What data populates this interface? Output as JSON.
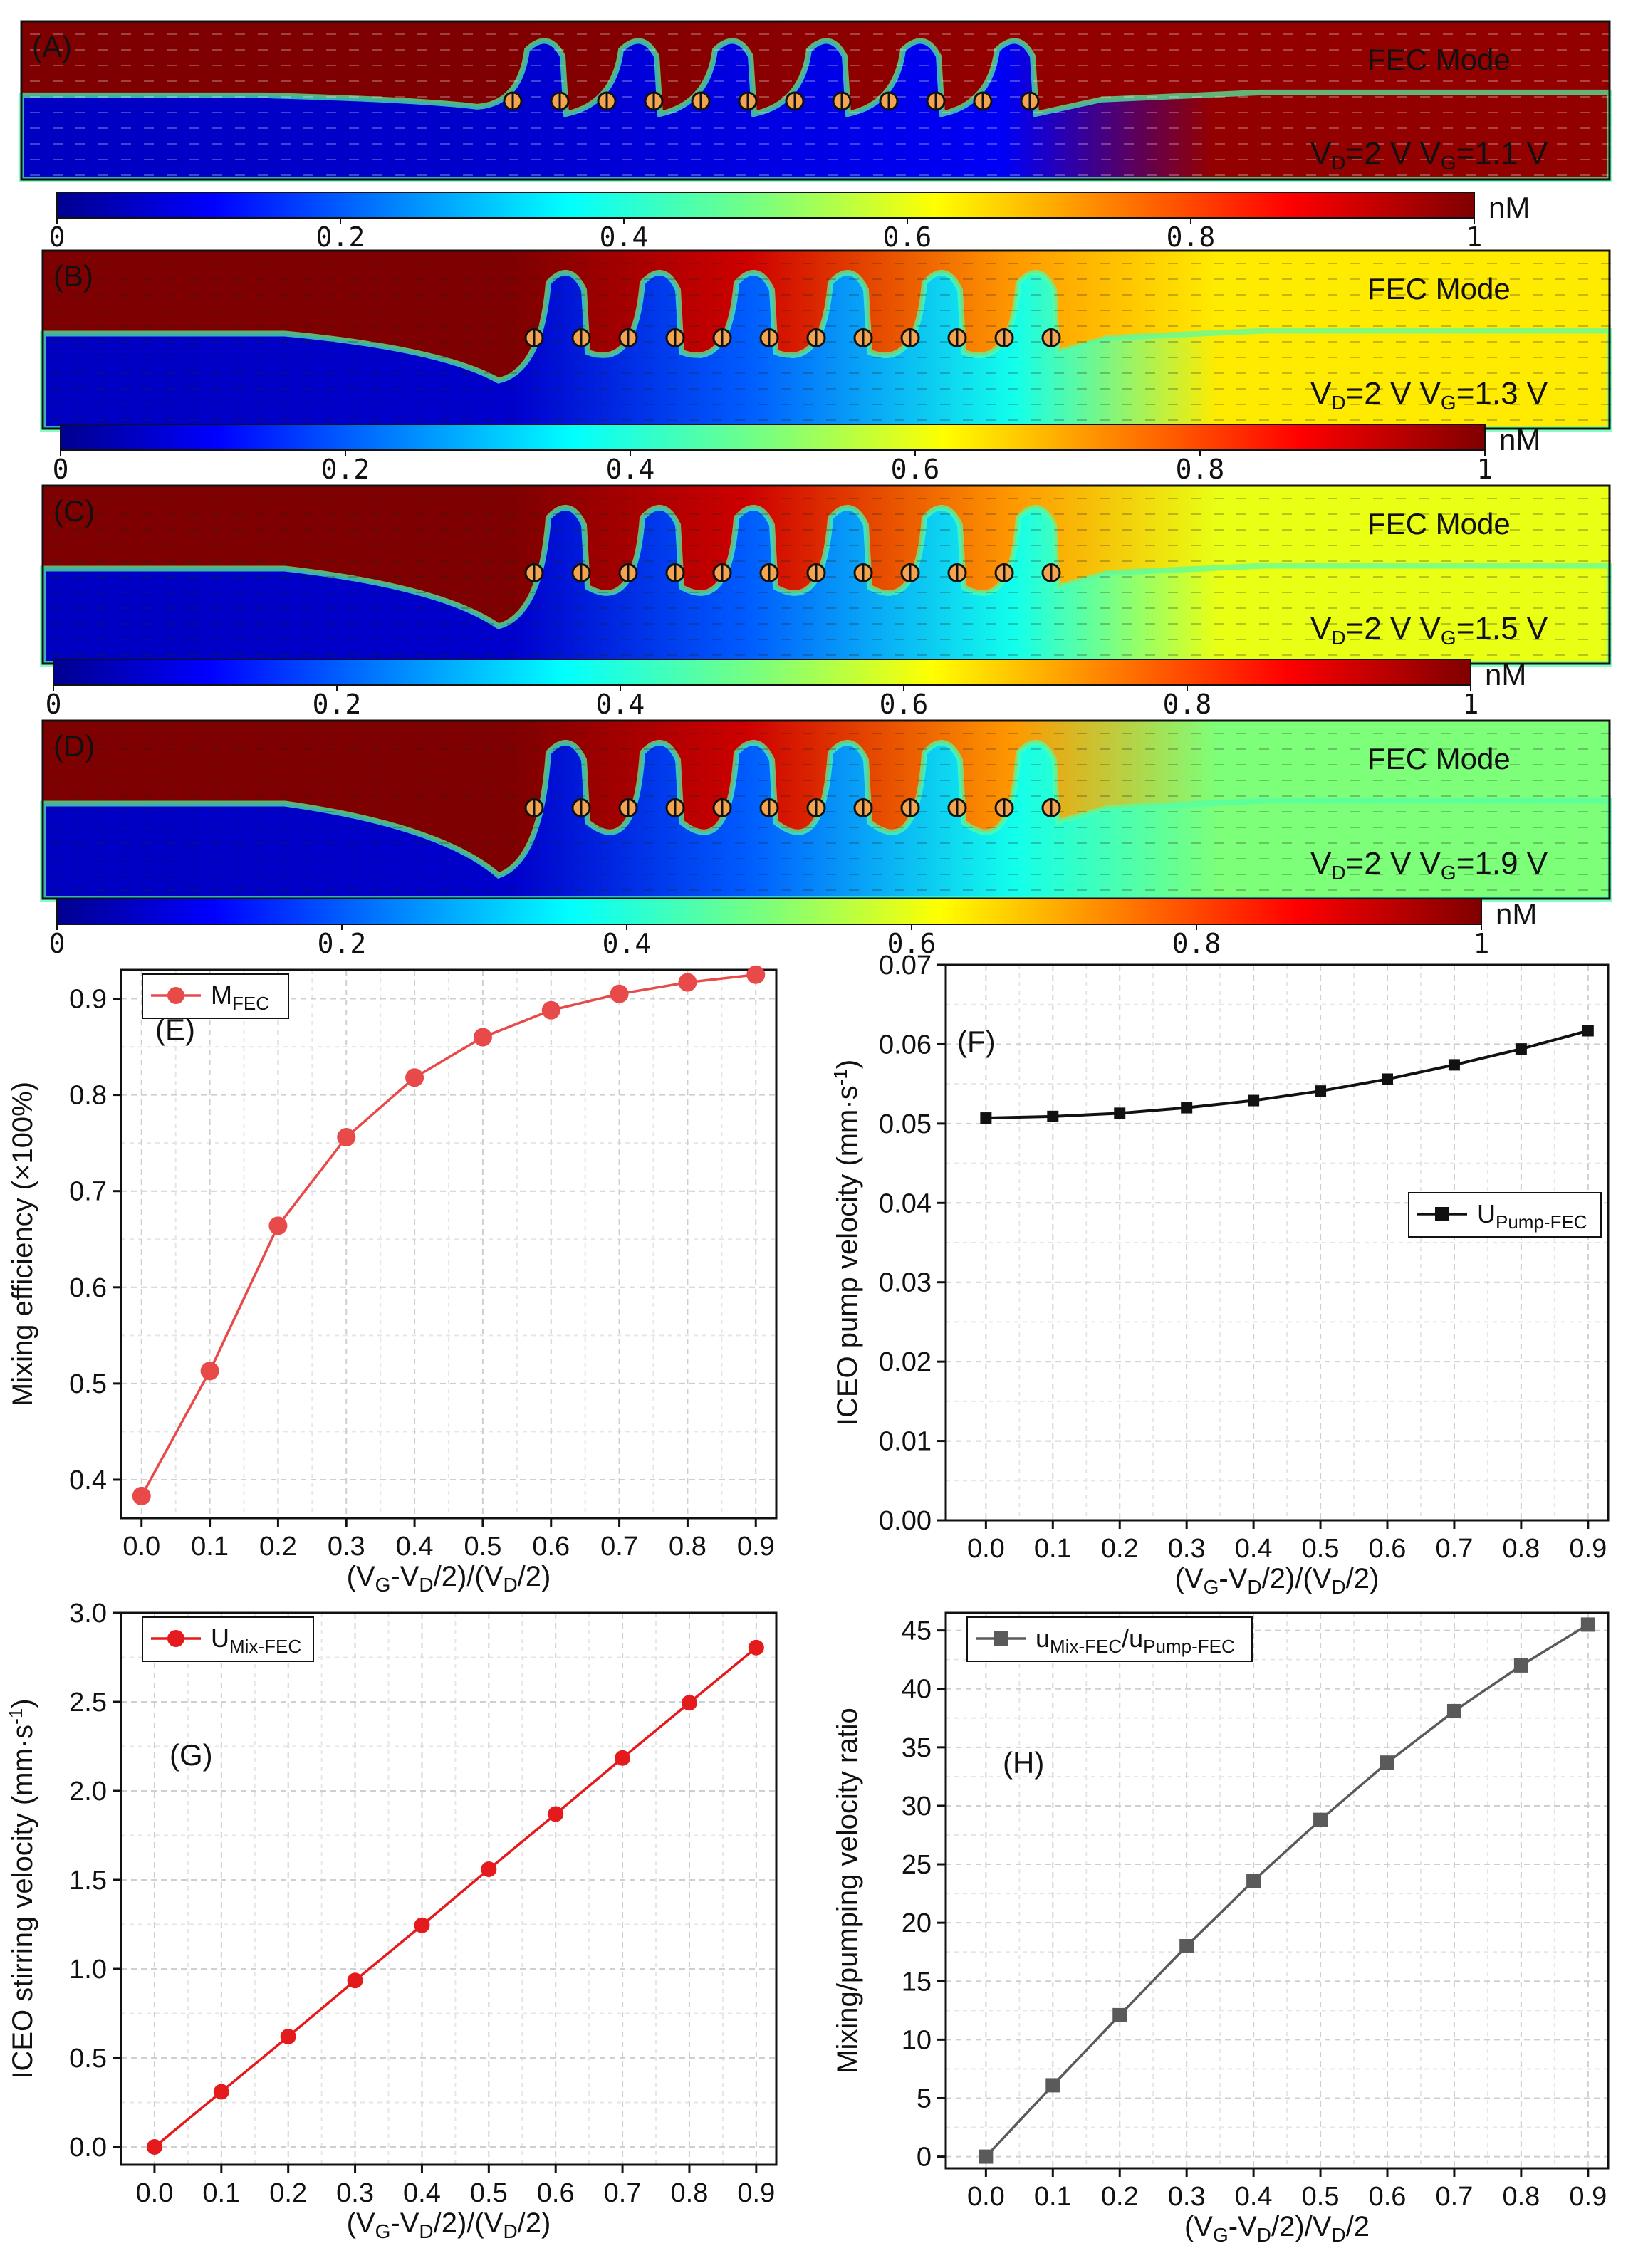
{
  "sims": [
    {
      "label": "(A)",
      "mode": "FEC Mode",
      "vd_text": "V",
      "vd_sub": "D",
      "vd_val": "=2 V V",
      "vg_sub": "G",
      "vg_val": "=1.1 V",
      "vg": 1.1
    },
    {
      "label": "(B)",
      "mode": "FEC Mode",
      "vd_text": "V",
      "vd_sub": "D",
      "vd_val": "=2 V V",
      "vg_sub": "G",
      "vg_val": "=1.3 V",
      "vg": 1.3
    },
    {
      "label": "(C)",
      "mode": "FEC Mode",
      "vd_text": "V",
      "vd_sub": "D",
      "vd_val": "=2 V V",
      "vg_sub": "G",
      "vg_val": "=1.5 V",
      "vg": 1.5
    },
    {
      "label": "(D)",
      "mode": "FEC Mode",
      "vd_text": "V",
      "vd_sub": "D",
      "vd_val": "=2 V V",
      "vg_sub": "G",
      "vg_val": "=1.9 V",
      "vg": 1.9
    }
  ],
  "colorbar": {
    "ticks": [
      "0",
      "0.2",
      "0.4",
      "0.6",
      "0.8",
      "1"
    ],
    "unit": "nM",
    "range": [
      0,
      1
    ]
  },
  "colors": {
    "jet_low": "#0b1f9a",
    "jet_high": "#7d0000",
    "panel_e": "#e84a4a",
    "panel_f": "#111111",
    "panel_g": "#e41a1c",
    "panel_h": "#5a5a5a",
    "grid": "#cfcfcf"
  },
  "chart_data": [
    {
      "id": "E",
      "type": "line",
      "panel_label": "(E)",
      "x": [
        0.0,
        0.1,
        0.2,
        0.3,
        0.4,
        0.5,
        0.6,
        0.7,
        0.8,
        0.9
      ],
      "series": [
        {
          "name": "M",
          "sub": "FEC",
          "marker": "circle",
          "values": [
            0.383,
            0.513,
            0.664,
            0.756,
            0.818,
            0.86,
            0.888,
            0.905,
            0.917,
            0.925
          ]
        }
      ],
      "xlim": [
        -0.03,
        0.93
      ],
      "ylim": [
        0.36,
        0.93
      ],
      "xticks": [
        "0.0",
        "0.1",
        "0.2",
        "0.3",
        "0.4",
        "0.5",
        "0.6",
        "0.7",
        "0.8",
        "0.9"
      ],
      "yticks": [
        "0.4",
        "0.5",
        "0.6",
        "0.7",
        "0.8",
        "0.9"
      ],
      "ylabel": "Mixing efficiency (×100%)",
      "xlabel_parts": [
        "(V",
        "G",
        "-V",
        "D",
        "/2)/(V",
        "D",
        "/2)"
      ],
      "legend": "top-left"
    },
    {
      "id": "F",
      "type": "line",
      "panel_label": "(F)",
      "x": [
        0.0,
        0.1,
        0.2,
        0.3,
        0.4,
        0.5,
        0.6,
        0.7,
        0.8,
        0.9
      ],
      "series": [
        {
          "name": "U",
          "sub": "Pump-FEC",
          "marker": "square",
          "values": [
            0.0507,
            0.0509,
            0.0513,
            0.052,
            0.0529,
            0.0541,
            0.0556,
            0.0574,
            0.0594,
            0.0617
          ]
        }
      ],
      "xlim": [
        -0.06,
        0.93
      ],
      "ylim": [
        0,
        0.07
      ],
      "xticks": [
        "0.0",
        "0.1",
        "0.2",
        "0.3",
        "0.4",
        "0.5",
        "0.6",
        "0.7",
        "0.8",
        "0.9"
      ],
      "yticks": [
        "0.00",
        "0.01",
        "0.02",
        "0.03",
        "0.04",
        "0.05",
        "0.06",
        "0.07"
      ],
      "ylabel": "ICEO pump velocity (mm·s",
      "ylabel_sup": "-1",
      "ylabel_end": ")",
      "xlabel_parts": [
        "(V",
        "G",
        "-V",
        "D",
        "/2)/(V",
        "D",
        "/2)"
      ],
      "legend": "middle-right"
    },
    {
      "id": "G",
      "type": "line",
      "panel_label": "(G)",
      "x": [
        0.0,
        0.1,
        0.2,
        0.3,
        0.4,
        0.5,
        0.6,
        0.7,
        0.8,
        0.9
      ],
      "series": [
        {
          "name": "U",
          "sub": "Mix-FEC",
          "marker": "circle",
          "values": [
            0.0,
            0.31,
            0.62,
            0.935,
            1.245,
            1.56,
            1.87,
            2.185,
            2.495,
            2.805
          ]
        }
      ],
      "xlim": [
        -0.05,
        0.93
      ],
      "ylim": [
        -0.1,
        3.0
      ],
      "xticks": [
        "0.0",
        "0.1",
        "0.2",
        "0.3",
        "0.4",
        "0.5",
        "0.6",
        "0.7",
        "0.8",
        "0.9"
      ],
      "yticks": [
        "0.0",
        "0.5",
        "1.0",
        "1.5",
        "2.0",
        "2.5",
        "3.0"
      ],
      "ylabel": "ICEO stirring velocity (mm·s",
      "ylabel_sup": "-1",
      "ylabel_end": ")",
      "xlabel_parts": [
        "(V",
        "G",
        "-V",
        "D",
        "/2)/(V",
        "D",
        "/2)"
      ],
      "legend": "top-left"
    },
    {
      "id": "H",
      "type": "line",
      "panel_label": "(H)",
      "x": [
        0.0,
        0.1,
        0.2,
        0.3,
        0.4,
        0.5,
        0.6,
        0.7,
        0.8,
        0.9
      ],
      "series": [
        {
          "name": "u",
          "sub": "Mix-FEC",
          "name2": "/u",
          "sub2": "Pump-FEC",
          "marker": "square",
          "values": [
            0.0,
            6.1,
            12.1,
            18.0,
            23.6,
            28.8,
            33.7,
            38.1,
            42.0,
            45.5
          ]
        }
      ],
      "xlim": [
        -0.06,
        0.93
      ],
      "ylim": [
        -1,
        46.5
      ],
      "xticks": [
        "0.0",
        "0.1",
        "0.2",
        "0.3",
        "0.4",
        "0.5",
        "0.6",
        "0.7",
        "0.8",
        "0.9"
      ],
      "yticks": [
        "0",
        "5",
        "10",
        "15",
        "20",
        "25",
        "30",
        "35",
        "40",
        "45"
      ],
      "ylabel": "Mixing/pumping velocity ratio",
      "xlabel_parts": [
        "(V",
        "G",
        "-V",
        "D",
        "/2)/V",
        "D",
        "/2"
      ],
      "legend": "top-left"
    }
  ]
}
